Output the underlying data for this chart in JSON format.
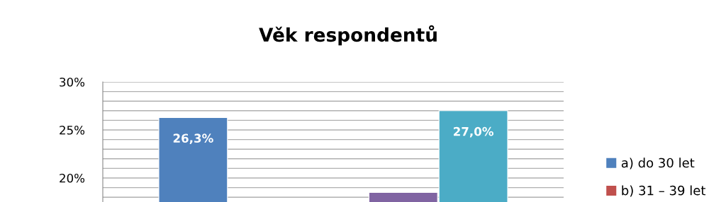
{
  "chart_data": {
    "type": "bar",
    "title": "Věk respondentů",
    "categories": [
      null
    ],
    "series": [
      {
        "name": "a) do 30 let",
        "color": "#4f81bd",
        "values": [
          26.3
        ],
        "value_labels": [
          "26,3%"
        ]
      },
      {
        "name": "b) 31 – 39 let",
        "color": "#c0504d",
        "values": [
          null
        ]
      },
      {
        "color": "#9bbb59",
        "values": [
          null
        ]
      },
      {
        "color": "#8064a2",
        "values": [
          18.5
        ]
      },
      {
        "color": "#4bacc6",
        "values": [
          27.0
        ],
        "value_labels": [
          "27,0%"
        ]
      }
    ],
    "ylim": [
      17.5,
      30
    ],
    "yticks": [
      {
        "value": 18,
        "label": null
      },
      {
        "value": 19,
        "label": null
      },
      {
        "value": 20,
        "label": "20%"
      },
      {
        "value": 21,
        "label": null
      },
      {
        "value": 22,
        "label": null
      },
      {
        "value": 23,
        "label": null
      },
      {
        "value": 24,
        "label": null
      },
      {
        "value": 25,
        "label": "25%"
      },
      {
        "value": 26,
        "label": null
      },
      {
        "value": 27,
        "label": null
      },
      {
        "value": 28,
        "label": null
      },
      {
        "value": 29,
        "label": null
      },
      {
        "value": 30,
        "label": "30%"
      }
    ],
    "grid": "y",
    "legend": "right"
  }
}
